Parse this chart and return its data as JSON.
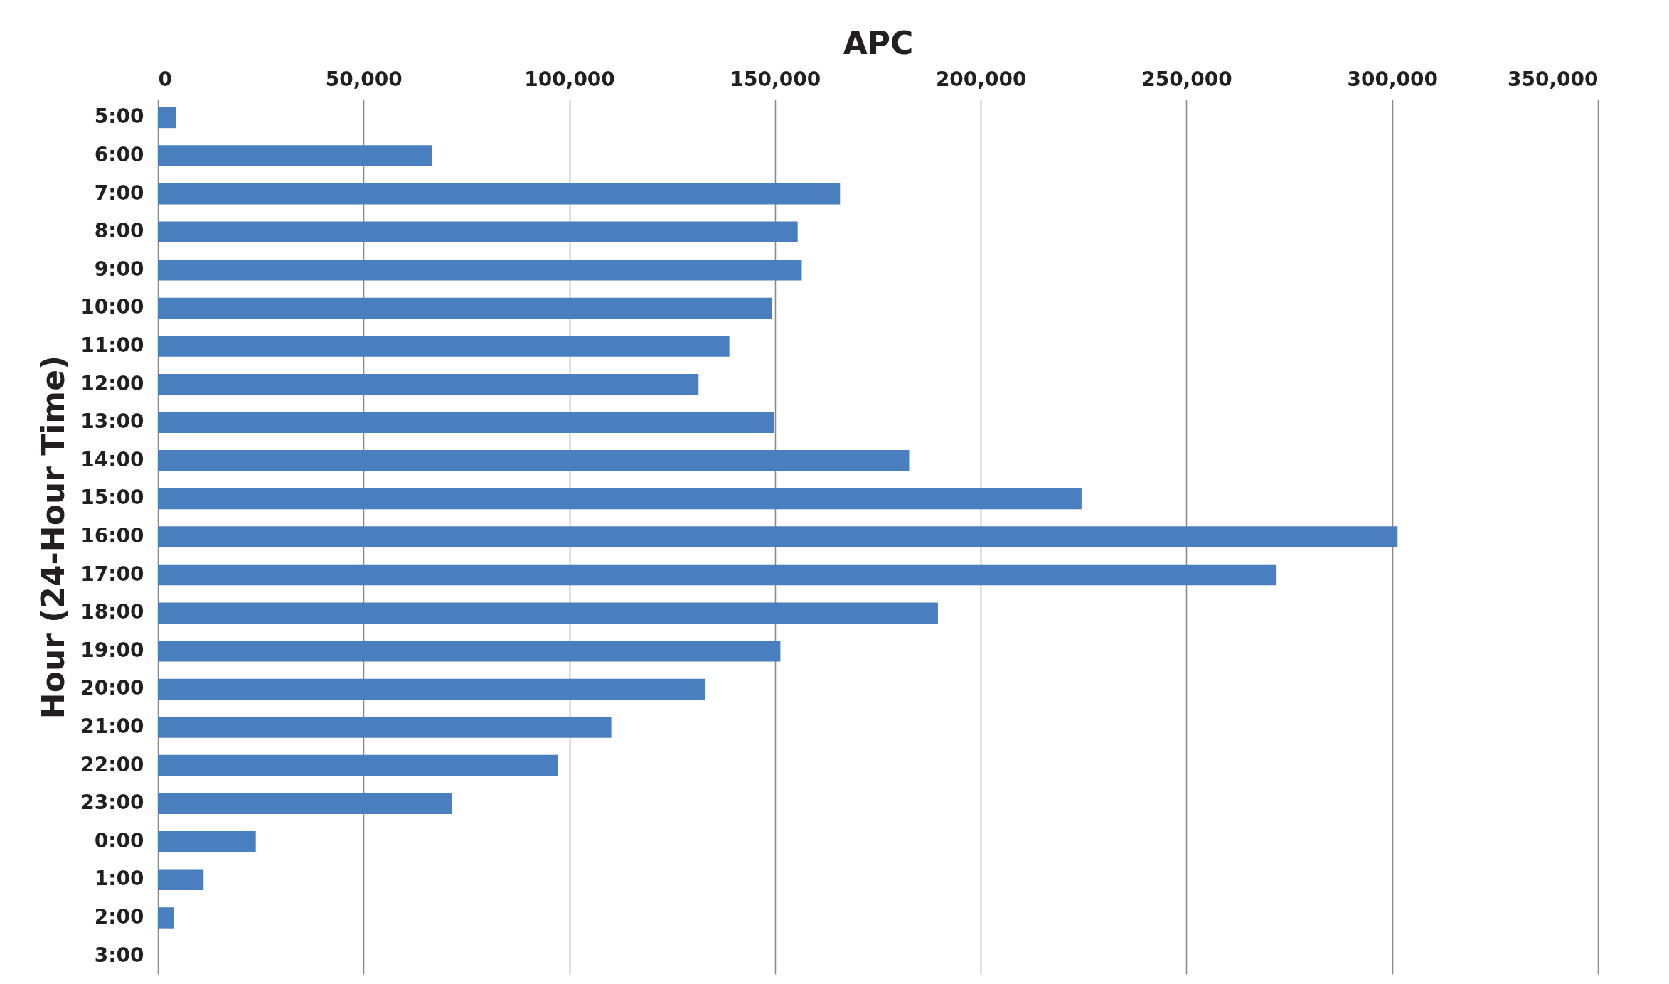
{
  "chart_data": {
    "type": "bar",
    "orientation": "horizontal",
    "xlabel": "APC",
    "ylabel": "Hour (24-Hour Time)",
    "categories": [
      "5:00",
      "6:00",
      "7:00",
      "8:00",
      "9:00",
      "10:00",
      "11:00",
      "12:00",
      "13:00",
      "14:00",
      "15:00",
      "16:00",
      "17:00",
      "18:00",
      "19:00",
      "20:00",
      "21:00",
      "22:00",
      "23:00",
      "0:00",
      "1:00",
      "2:00",
      "3:00"
    ],
    "values": [
      4400,
      66700,
      165800,
      155500,
      156500,
      149200,
      138900,
      131400,
      149800,
      182600,
      224500,
      301300,
      271900,
      189600,
      151300,
      133000,
      110200,
      97300,
      71400,
      23800,
      11100,
      3900,
      0
    ],
    "color": "#4a7fbf",
    "xlim": [
      0,
      350000
    ],
    "xticks": [
      0,
      {
        "value": 50000,
        "label": "50,000"
      },
      {
        "value": 100000,
        "label": "100,000"
      },
      {
        "value": 150000,
        "label": "150,000"
      },
      {
        "value": 200000,
        "label": "200,000"
      },
      {
        "value": 250000,
        "label": "250,000"
      },
      {
        "value": 300000,
        "label": "300,000"
      },
      {
        "value": 350000,
        "label": "350,000"
      }
    ],
    "grid": "x"
  }
}
